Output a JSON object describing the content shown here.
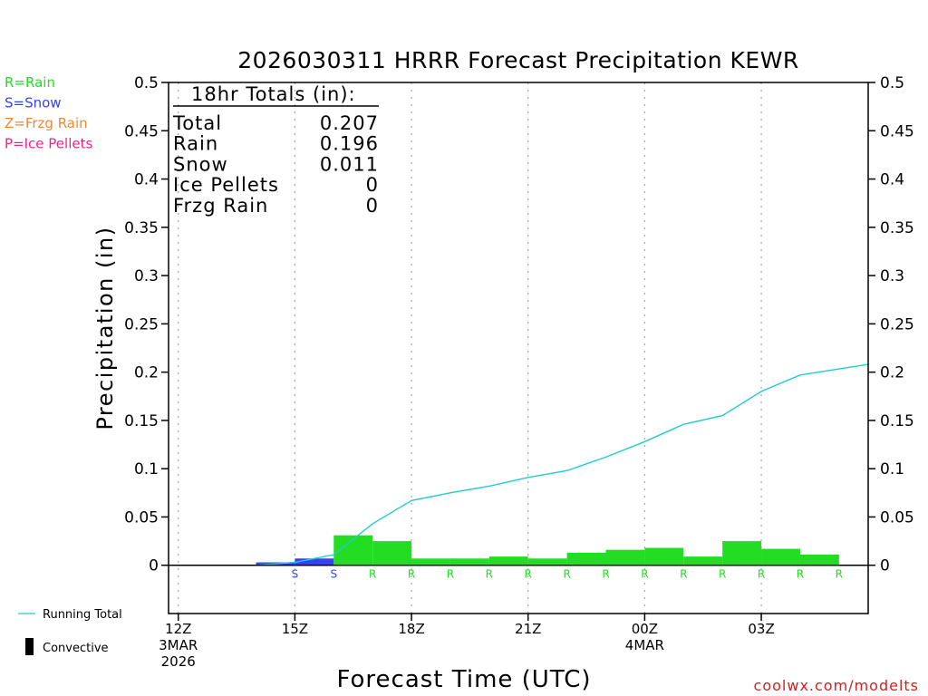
{
  "chart_data": {
    "type": "bar",
    "title": "2026030311 HRRR Forecast Precipitation KEWR",
    "xlabel": "Forecast Time (UTC)",
    "ylabel": "Precipitation (in)",
    "ylim": [
      -0.05,
      0.5
    ],
    "yticks": [
      "0.5",
      "0.45",
      "0.4",
      "0.35",
      "0.3",
      "0.25",
      "0.2",
      "0.15",
      "0.1",
      "0.05",
      "0"
    ],
    "ytick_values": [
      0.5,
      0.45,
      0.4,
      0.35,
      0.3,
      0.25,
      0.2,
      0.15,
      0.1,
      0.05,
      0
    ],
    "xlim_hours": [
      11.75,
      29.75
    ],
    "xticks": [
      {
        "hour": 12,
        "label": "12Z",
        "date": "3MAR",
        "year": "2026"
      },
      {
        "hour": 15,
        "label": "15Z",
        "date": "",
        "year": ""
      },
      {
        "hour": 18,
        "label": "18Z",
        "date": "",
        "year": ""
      },
      {
        "hour": 21,
        "label": "21Z",
        "date": "",
        "year": ""
      },
      {
        "hour": 24,
        "label": "00Z",
        "date": "4MAR",
        "year": ""
      },
      {
        "hour": 27,
        "label": "03Z",
        "date": "",
        "year": ""
      }
    ],
    "hours": [
      13,
      14,
      15,
      16,
      17,
      18,
      19,
      20,
      21,
      22,
      23,
      24,
      25,
      26,
      27,
      28,
      29
    ],
    "values": [
      0.0,
      0.0,
      0.003,
      0.007,
      0.031,
      0.025,
      0.007,
      0.007,
      0.009,
      0.007,
      0.013,
      0.016,
      0.018,
      0.009,
      0.025,
      0.017,
      0.011
    ],
    "precip_types": [
      "",
      "",
      "S",
      "S",
      "R",
      "R",
      "R",
      "R",
      "R",
      "R",
      "R",
      "R",
      "R",
      "R",
      "R",
      "R",
      "R"
    ],
    "running_total": {
      "hours": [
        12,
        13,
        14,
        15,
        16,
        17,
        18,
        19,
        20,
        21,
        22,
        23,
        24,
        25,
        26,
        27,
        28,
        29.75
      ],
      "values": [
        0.0,
        0.0,
        0.0,
        0.003,
        0.011,
        0.043,
        0.067,
        0.075,
        0.082,
        0.091,
        0.098,
        0.112,
        0.128,
        0.146,
        0.155,
        0.18,
        0.197,
        0.208
      ]
    },
    "totals": {
      "heading": "18hr Totals (in):",
      "rows": [
        {
          "label": "Total",
          "value": "0.207"
        },
        {
          "label": "Rain",
          "value": "0.196"
        },
        {
          "label": "Snow",
          "value": "0.011"
        },
        {
          "label": "Ice Pellets",
          "value": "0"
        },
        {
          "label": "Frzg Rain",
          "value": "0"
        }
      ]
    },
    "type_legend": [
      {
        "code": "R",
        "text": "R=Rain",
        "color": "#22dd22"
      },
      {
        "code": "S",
        "text": "S=Snow",
        "color": "#3344ee"
      },
      {
        "code": "Z",
        "text": "Z=Frzg Rain",
        "color": "#ee8833"
      },
      {
        "code": "P",
        "text": "P=Ice Pellets",
        "color": "#ee2288"
      }
    ],
    "series_legend": [
      {
        "name": "Running Total",
        "color": "#22cccc"
      },
      {
        "name": "Convective",
        "color": "#000000"
      }
    ],
    "credit": "coolwx.com/modelts"
  }
}
